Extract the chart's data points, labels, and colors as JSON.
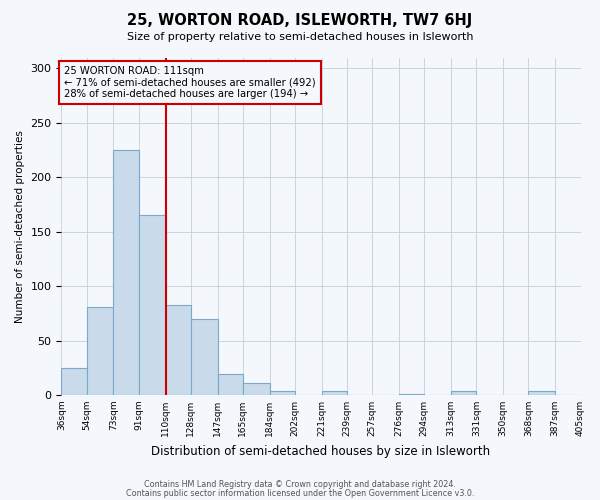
{
  "title": "25, WORTON ROAD, ISLEWORTH, TW7 6HJ",
  "subtitle": "Size of property relative to semi-detached houses in Isleworth",
  "xlabel": "Distribution of semi-detached houses by size in Isleworth",
  "ylabel": "Number of semi-detached properties",
  "bar_left_edges": [
    36,
    54,
    73,
    91,
    110,
    128,
    147,
    165,
    184,
    202,
    221,
    239,
    257,
    276,
    294,
    313,
    331,
    350,
    368,
    387
  ],
  "bar_widths": [
    18,
    19,
    18,
    19,
    18,
    19,
    18,
    19,
    18,
    19,
    18,
    18,
    19,
    18,
    19,
    18,
    19,
    18,
    19,
    18
  ],
  "bar_heights": [
    25,
    81,
    225,
    165,
    83,
    70,
    19,
    11,
    4,
    0,
    4,
    0,
    0,
    1,
    0,
    4,
    0,
    0,
    4,
    0
  ],
  "bar_color": "#c9daea",
  "bar_edge_color": "#7aaac8",
  "property_line_x": 110,
  "property_line_color": "#cc0000",
  "annotation_title": "25 WORTON ROAD: 111sqm",
  "annotation_line1": "← 71% of semi-detached houses are smaller (492)",
  "annotation_line2": "28% of semi-detached houses are larger (194) →",
  "annotation_box_color": "#cc0000",
  "ylim": [
    0,
    310
  ],
  "xlim": [
    36,
    405
  ],
  "tick_positions": [
    36,
    54,
    73,
    91,
    110,
    128,
    147,
    165,
    184,
    202,
    221,
    239,
    257,
    276,
    294,
    313,
    331,
    350,
    368,
    387,
    405
  ],
  "tick_labels": [
    "36sqm",
    "54sqm",
    "73sqm",
    "91sqm",
    "110sqm",
    "128sqm",
    "147sqm",
    "165sqm",
    "184sqm",
    "202sqm",
    "221sqm",
    "239sqm",
    "257sqm",
    "276sqm",
    "294sqm",
    "313sqm",
    "331sqm",
    "350sqm",
    "368sqm",
    "387sqm",
    "405sqm"
  ],
  "yticks": [
    0,
    50,
    100,
    150,
    200,
    250,
    300
  ],
  "footer1": "Contains HM Land Registry data © Crown copyright and database right 2024.",
  "footer2": "Contains public sector information licensed under the Open Government Licence v3.0.",
  "bg_color": "#f4f7fb",
  "grid_color": "#c5d0dc"
}
